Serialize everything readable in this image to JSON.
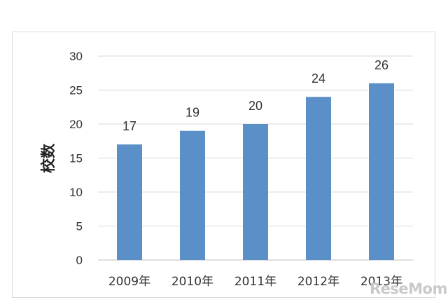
{
  "chart_data": {
    "type": "bar",
    "categories": [
      "2009年",
      "2010年",
      "2011年",
      "2012年",
      "2013年"
    ],
    "values": [
      17,
      19,
      20,
      24,
      26
    ],
    "data_labels": [
      "17",
      "19",
      "20",
      "24",
      "26"
    ],
    "ylabel": "校数",
    "ylim": [
      0,
      30
    ],
    "yticks": [
      "0",
      "5",
      "10",
      "15",
      "20",
      "25",
      "30"
    ],
    "grid": true,
    "legend": "none",
    "bar_color": "#5b8fc7"
  },
  "watermark": "ReseMom"
}
